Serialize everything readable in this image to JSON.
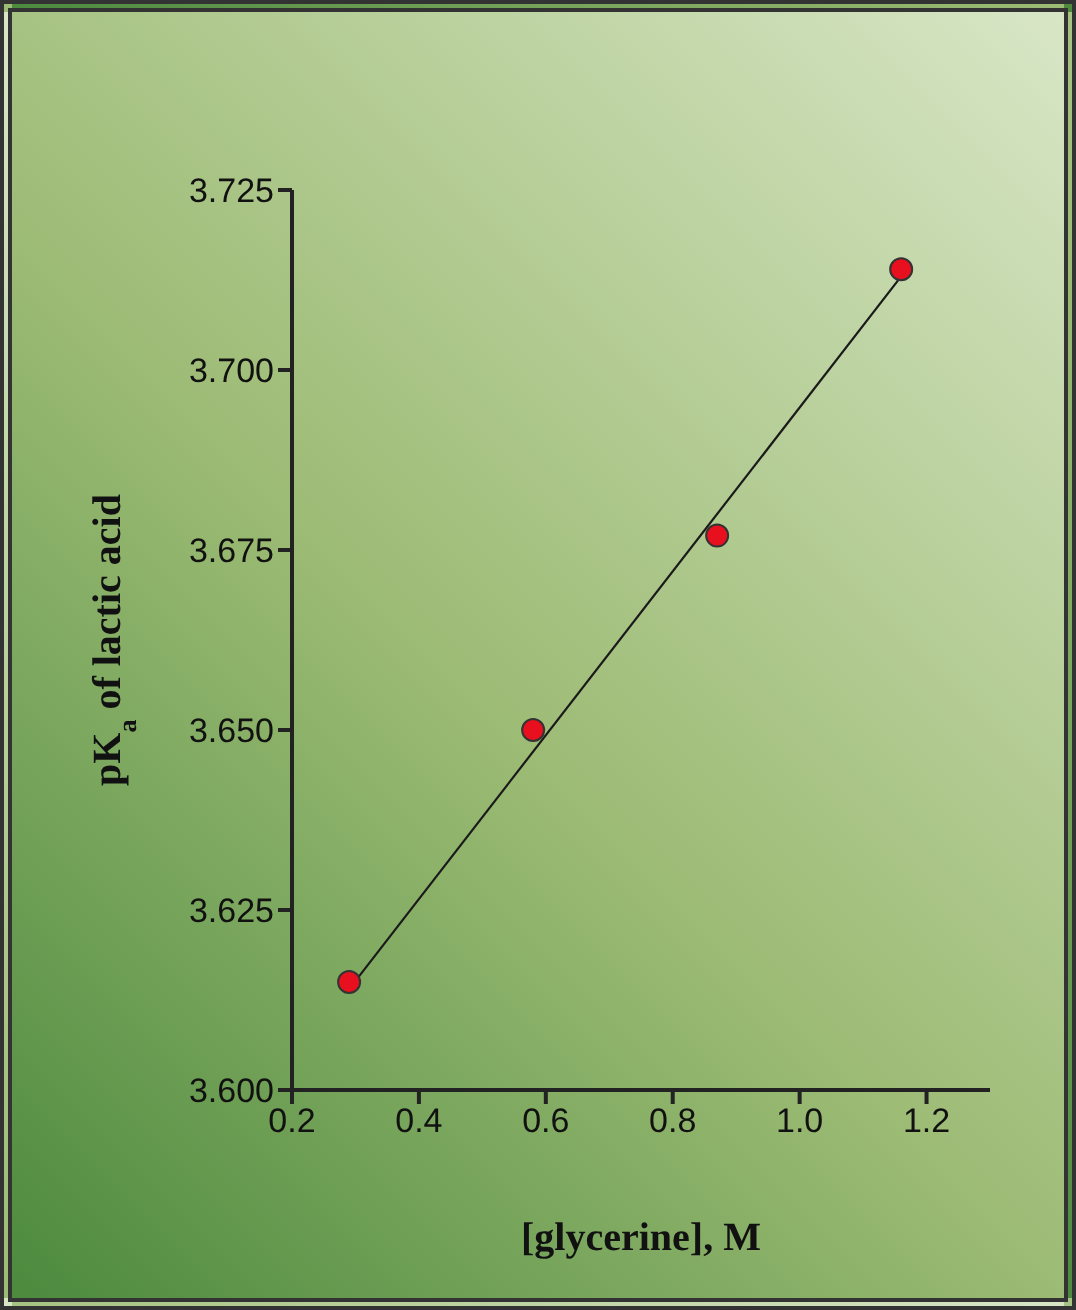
{
  "chart_data": {
    "type": "scatter",
    "xlabel": "[glycerine], M",
    "ylabel": "pK$_{a}$ of lactic acid",
    "xlim": [
      0.2,
      1.3
    ],
    "xticks": [
      0.2,
      0.4,
      0.6,
      0.8,
      {
        "value": 1,
        "label": "1.0"
      },
      1.2
    ],
    "ylim": [
      3.6,
      3.725
    ],
    "yticks": [
      {
        "value": 3.6,
        "label": "3.600"
      },
      {
        "value": 3.625,
        "label": "3.625"
      },
      {
        "value": 3.65,
        "label": "3.650"
      },
      {
        "value": 3.675,
        "label": "3.675"
      },
      {
        "value": 3.7,
        "label": "3.700"
      },
      {
        "value": 3.725,
        "label": "3.725"
      }
    ],
    "marker": "circle",
    "series": [
      {
        "color": "#e8101e",
        "x": [
          0.29,
          0.58,
          0.87,
          1.16
        ],
        "values": [
          3.615,
          3.65,
          3.677,
          3.714
        ]
      },
      {
        "type": "line",
        "color": "#1a1a1a",
        "marker": "none",
        "x": [
          0.29,
          1.16
        ],
        "values": [
          3.614,
          3.713
        ]
      }
    ]
  }
}
